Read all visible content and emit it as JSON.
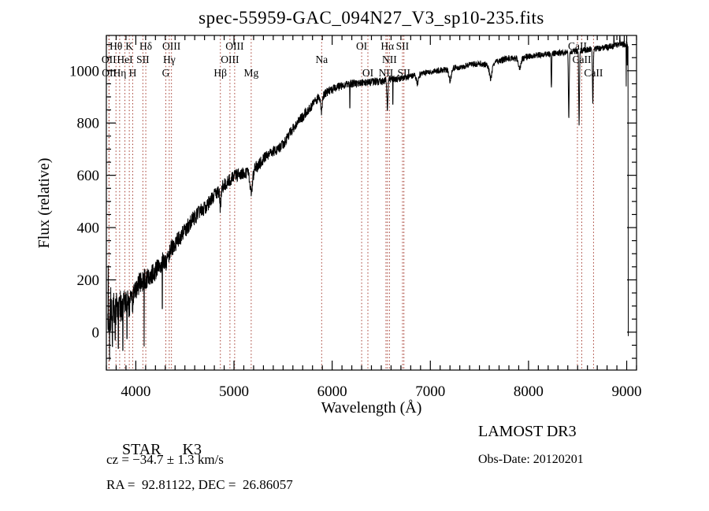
{
  "title": "spec-55959-GAC_094N27_V3_sp10-235.fits",
  "annotations": {
    "object_type": "STAR",
    "subclass": "K3",
    "cz_line": "cz = −34.7 ± 1.3 km/s",
    "radec_line": "RA =  92.81122, DEC =  26.86057",
    "survey": "LAMOST DR3",
    "obs_date_line": "Obs-Date: 20120201"
  },
  "chart_data": {
    "type": "line",
    "title": "spec-55959-GAC_094N27_V3_sp10-235.fits",
    "xlabel": "Wavelength (Å)",
    "ylabel": "Flux (relative)",
    "xlim": [
      3700,
      9100
    ],
    "ylim": [
      -145,
      1135
    ],
    "x_ticks": [
      4000,
      5000,
      6000,
      7000,
      8000,
      9000
    ],
    "x_tick_labels": [
      "4000",
      "5000",
      "6000",
      "7000",
      "8000",
      "9000"
    ],
    "x_minor_step": 100,
    "y_ticks": [
      0,
      200,
      400,
      600,
      800,
      1000
    ],
    "y_tick_labels": [
      "0",
      "200",
      "400",
      "600",
      "800",
      "1000"
    ],
    "y_minor_step": 50,
    "grid": false,
    "legend": "none",
    "trace_color": "#000000",
    "line_marker_color": "#a43a2e",
    "frame_color": "#000000",
    "spectral_lines": [
      {
        "label": "OII",
        "wavelength": 3726.0,
        "row": 2
      },
      {
        "label": "OII",
        "wavelength": 3728.8,
        "row": 3
      },
      {
        "label": "Hθ",
        "wavelength": 3798.0,
        "row": 1
      },
      {
        "label": "Hη",
        "wavelength": 3835.4,
        "row": 3
      },
      {
        "label": "HeI",
        "wavelength": 3889.0,
        "row": 2
      },
      {
        "label": "K",
        "wavelength": 3933.7,
        "row": 1
      },
      {
        "label": "H",
        "wavelength": 3968.5,
        "row": 3
      },
      {
        "label": "SII",
        "wavelength": 4072.0,
        "row": 2
      },
      {
        "label": "Hδ",
        "wavelength": 4101.7,
        "row": 1
      },
      {
        "label": "G",
        "wavelength": 4305.6,
        "row": 3
      },
      {
        "label": "Hγ",
        "wavelength": 4340.5,
        "row": 2
      },
      {
        "label": "OIII",
        "wavelength": 4363.2,
        "row": 1
      },
      {
        "label": "Hβ",
        "wavelength": 4861.3,
        "row": 3
      },
      {
        "label": "OIII",
        "wavelength": 4958.9,
        "row": 2
      },
      {
        "label": "OIII",
        "wavelength": 5006.8,
        "row": 1
      },
      {
        "label": "Mg",
        "wavelength": 5175.3,
        "row": 3
      },
      {
        "label": "Na",
        "wavelength": 5893.0,
        "row": 2
      },
      {
        "label": "OI",
        "wavelength": 6300.3,
        "row": 1
      },
      {
        "label": "OI",
        "wavelength": 6363.8,
        "row": 3
      },
      {
        "label": "NII",
        "wavelength": 6548.0,
        "row": 3
      },
      {
        "label": "Hα",
        "wavelength": 6562.8,
        "row": 1
      },
      {
        "label": "NII",
        "wavelength": 6583.4,
        "row": 2
      },
      {
        "label": "SII",
        "wavelength": 6716.4,
        "row": 1
      },
      {
        "label": "SII",
        "wavelength": 6730.8,
        "row": 3
      },
      {
        "label": "CaII",
        "wavelength": 8498.0,
        "row": 1
      },
      {
        "label": "CaII",
        "wavelength": 8542.1,
        "row": 2
      },
      {
        "label": "CaII",
        "wavelength": 8662.1,
        "row": 3
      }
    ],
    "spectrum": {
      "wavelength_start": 3715,
      "wavelength_end": 9014,
      "step": 2,
      "continuum_points": [
        [
          3715,
          55
        ],
        [
          3760,
          68
        ],
        [
          3800,
          88
        ],
        [
          3850,
          102
        ],
        [
          3900,
          112
        ],
        [
          3950,
          132
        ],
        [
          4000,
          172
        ],
        [
          4050,
          190
        ],
        [
          4100,
          205
        ],
        [
          4150,
          218
        ],
        [
          4200,
          232
        ],
        [
          4250,
          258
        ],
        [
          4300,
          288
        ],
        [
          4350,
          315
        ],
        [
          4400,
          338
        ],
        [
          4450,
          362
        ],
        [
          4500,
          388
        ],
        [
          4550,
          418
        ],
        [
          4600,
          440
        ],
        [
          4650,
          458
        ],
        [
          4700,
          476
        ],
        [
          4750,
          496
        ],
        [
          4800,
          520
        ],
        [
          4850,
          542
        ],
        [
          4900,
          562
        ],
        [
          4950,
          580
        ],
        [
          5000,
          594
        ],
        [
          5050,
          604
        ],
        [
          5100,
          610
        ],
        [
          5150,
          612
        ],
        [
          5200,
          620
        ],
        [
          5250,
          640
        ],
        [
          5300,
          662
        ],
        [
          5350,
          680
        ],
        [
          5400,
          692
        ],
        [
          5450,
          702
        ],
        [
          5500,
          718
        ],
        [
          5550,
          748
        ],
        [
          5600,
          778
        ],
        [
          5650,
          802
        ],
        [
          5700,
          824
        ],
        [
          5750,
          848
        ],
        [
          5800,
          870
        ],
        [
          5850,
          892
        ],
        [
          5900,
          906
        ],
        [
          5950,
          918
        ],
        [
          6000,
          928
        ],
        [
          6100,
          944
        ],
        [
          6200,
          950
        ],
        [
          6300,
          952
        ],
        [
          6400,
          958
        ],
        [
          6500,
          958
        ],
        [
          6600,
          968
        ],
        [
          6700,
          968
        ],
        [
          6800,
          978
        ],
        [
          6900,
          988
        ],
        [
          7000,
          996
        ],
        [
          7100,
          1002
        ],
        [
          7200,
          1008
        ],
        [
          7300,
          1014
        ],
        [
          7400,
          1022
        ],
        [
          7500,
          1028
        ],
        [
          7600,
          1022
        ],
        [
          7700,
          1038
        ],
        [
          7800,
          1048
        ],
        [
          7900,
          1045
        ],
        [
          8000,
          1055
        ],
        [
          8100,
          1060
        ],
        [
          8200,
          1064
        ],
        [
          8300,
          1068
        ],
        [
          8400,
          1072
        ],
        [
          8500,
          1076
        ],
        [
          8600,
          1080
        ],
        [
          8700,
          1086
        ],
        [
          8800,
          1090
        ],
        [
          8900,
          1098
        ],
        [
          9000,
          1104
        ],
        [
          9014,
          1098
        ]
      ],
      "absorption_features": [
        [
          3933.7,
          45,
          5
        ],
        [
          3968.5,
          45,
          5
        ],
        [
          4101.7,
          30,
          5
        ],
        [
          4305.6,
          35,
          9
        ],
        [
          4340.5,
          25,
          5
        ],
        [
          4861.3,
          70,
          6
        ],
        [
          5175.3,
          80,
          13
        ],
        [
          5893,
          62,
          8
        ],
        [
          6562.8,
          110,
          5
        ],
        [
          6870,
          35,
          10
        ],
        [
          7200,
          45,
          12
        ],
        [
          7615,
          55,
          13
        ],
        [
          7910,
          40,
          12
        ],
        [
          8233,
          140,
          3
        ],
        [
          8410,
          250,
          4
        ],
        [
          8515,
          275,
          4
        ],
        [
          8655,
          210,
          4
        ]
      ],
      "noise_profile": [
        [
          3715,
          75
        ],
        [
          3800,
          68
        ],
        [
          3900,
          55
        ],
        [
          4000,
          46
        ],
        [
          4200,
          38
        ],
        [
          4500,
          31
        ],
        [
          4800,
          27
        ],
        [
          5200,
          23
        ],
        [
          5600,
          20
        ],
        [
          6000,
          17
        ],
        [
          6500,
          14
        ],
        [
          7000,
          12
        ],
        [
          7600,
          12
        ],
        [
          8200,
          11
        ],
        [
          9014,
          13
        ]
      ],
      "spikes": [
        [
          3719,
          255
        ],
        [
          3733,
          -108
        ],
        [
          3745,
          172
        ],
        [
          3762,
          -55
        ],
        [
          3775,
          150
        ],
        [
          3790,
          -30
        ],
        [
          3806,
          130
        ],
        [
          3822,
          -62
        ],
        [
          3850,
          140
        ],
        [
          3868,
          -70
        ],
        [
          3910,
          -25
        ],
        [
          4085,
          -55
        ],
        [
          4270,
          90
        ],
        [
          6180,
          858
        ],
        [
          6618,
          872
        ],
        [
          8870,
          1140
        ],
        [
          8930,
          1136
        ],
        [
          8975,
          1142
        ],
        [
          8995,
          940
        ],
        [
          9005,
          1020
        ]
      ],
      "edge_drop_flux": -15,
      "seed": 1234567
    }
  }
}
